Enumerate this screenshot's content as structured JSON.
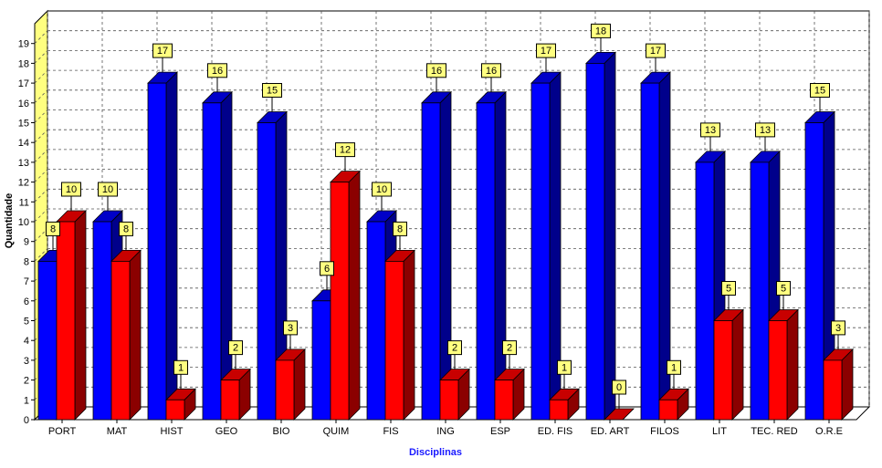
{
  "chart_data": {
    "type": "bar",
    "title": "",
    "xlabel": "Disciplinas",
    "ylabel": "Quantidade",
    "ylim": [
      0,
      20
    ],
    "yticks": [
      0,
      1,
      2,
      3,
      4,
      5,
      6,
      7,
      8,
      9,
      10,
      11,
      12,
      13,
      14,
      15,
      16,
      17,
      18,
      19
    ],
    "grid": true,
    "style": "3d-clustered",
    "categories": [
      "PORT",
      "MAT",
      "HIST",
      "GEO",
      "BIO",
      "QUIM",
      "FIS",
      "ING",
      "ESP",
      "ED. FIS",
      "ED. ART",
      "FILOS",
      "LIT",
      "TEC. RED",
      "O.R.E"
    ],
    "series": [
      {
        "values": [
          8,
          10,
          17,
          16,
          15,
          6,
          10,
          16,
          16,
          17,
          18,
          17,
          13,
          13,
          15
        ],
        "color": "#0000ff",
        "side_color": "#00008b",
        "top_color": "#0000c8"
      },
      {
        "values": [
          10,
          8,
          1,
          2,
          3,
          12,
          8,
          2,
          2,
          1,
          0,
          1,
          5,
          5,
          3
        ],
        "color": "#ff0000",
        "side_color": "#8b0000",
        "top_color": "#c80000"
      }
    ],
    "label_box_color": "#ffff80",
    "xlabel_color": "#1a1aff",
    "ylabel_color": "#000000",
    "wall_color": "#ffff80"
  }
}
